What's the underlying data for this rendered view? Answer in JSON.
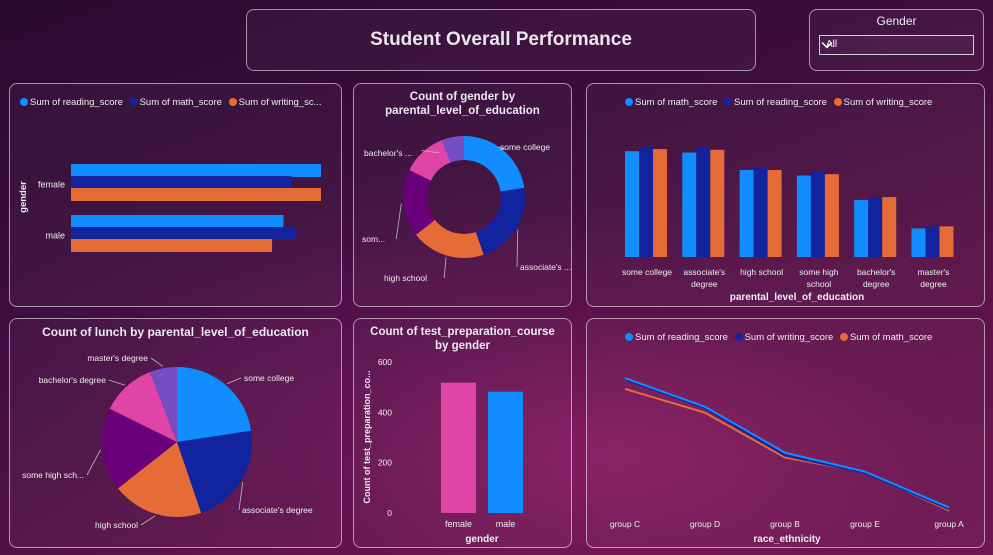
{
  "header": {
    "title": "Student Overall Performance"
  },
  "slicer": {
    "label": "Gender",
    "value": "All"
  },
  "colors": {
    "blue": "#118dff",
    "navy": "#12239e",
    "orange": "#e66c37",
    "pink": "#e044a7",
    "purple": "#6b007b",
    "violet": "#744ec2"
  },
  "chart_data": [
    {
      "type": "bar",
      "orientation": "horizontal",
      "legend": [
        "Sum of reading_score",
        "Sum of math_score",
        "Sum of writing_sc..."
      ],
      "ylabel": "gender",
      "categories": [
        "female",
        "male"
      ],
      "series": [
        {
          "name": "Sum of reading_score",
          "values": [
            37300,
            31700
          ]
        },
        {
          "name": "Sum of math_score",
          "values": [
            32900,
            33500
          ]
        },
        {
          "name": "Sum of writing_sc...",
          "values": [
            37300,
            30000
          ]
        }
      ]
    },
    {
      "type": "pie",
      "variant": "donut",
      "title": "Count of gender by parental_level_of_education",
      "labels": [
        "some college",
        "associate's ...",
        "high school",
        "som...",
        "bachelor's ..."
      ],
      "slices": [
        {
          "label": "some college",
          "value": 226
        },
        {
          "label": "associate's degree",
          "value": 222
        },
        {
          "label": "high school",
          "value": 196
        },
        {
          "label": "some high school",
          "value": 179
        },
        {
          "label": "bachelor's degree",
          "value": 118
        },
        {
          "label": "master's degree",
          "value": 59
        }
      ]
    },
    {
      "type": "bar",
      "legend": [
        "Sum of math_score",
        "Sum of reading_score",
        "Sum of writing_score"
      ],
      "xlabel": "parental_level_of_education",
      "categories": [
        "some college",
        "associate's degree",
        "high school",
        "some high school",
        "bachelor's degree",
        "master's degree"
      ],
      "series": [
        {
          "name": "Sum of math_score",
          "values": [
            15200,
            15000,
            12500,
            11700,
            8200,
            4100
          ]
        },
        {
          "name": "Sum of reading_score",
          "values": [
            15800,
            15800,
            12800,
            12300,
            8600,
            4400
          ]
        },
        {
          "name": "Sum of writing_score",
          "values": [
            15500,
            15400,
            12500,
            11900,
            8600,
            4400
          ]
        }
      ]
    },
    {
      "type": "pie",
      "title": "Count of lunch by parental_level_of_education",
      "labels": [
        "some college",
        "associate's degree",
        "high school",
        "some high sch...",
        "bachelor's degree",
        "master's degree"
      ],
      "slices": [
        {
          "label": "some college",
          "value": 226
        },
        {
          "label": "associate's degree",
          "value": 222
        },
        {
          "label": "high school",
          "value": 196
        },
        {
          "label": "some high school",
          "value": 179
        },
        {
          "label": "bachelor's degree",
          "value": 118
        },
        {
          "label": "master's degree",
          "value": 59
        }
      ]
    },
    {
      "type": "bar",
      "title": "Count of test_preparation_course by gender",
      "xlabel": "gender",
      "ylabel": "Count of test_preparation_co...",
      "categories": [
        "female",
        "male"
      ],
      "values": [
        518,
        482
      ],
      "ylim": [
        0,
        600
      ],
      "yticks": [
        "0",
        "200",
        "400",
        "600"
      ]
    },
    {
      "type": "line",
      "legend": [
        "Sum of reading_score",
        "Sum of writing_score",
        "Sum of math_score"
      ],
      "xlabel": "race_ethnicity",
      "categories": [
        "group C",
        "group D",
        "group B",
        "group E",
        "group A"
      ],
      "series": [
        {
          "name": "Sum of reading_score",
          "values": [
            22800,
            18000,
            10300,
            7100,
            1100
          ]
        },
        {
          "name": "Sum of writing_score",
          "values": [
            22600,
            17800,
            9800,
            6900,
            800
          ]
        },
        {
          "name": "Sum of math_score",
          "values": [
            21000,
            17000,
            9500,
            7000,
            600
          ]
        }
      ]
    }
  ]
}
